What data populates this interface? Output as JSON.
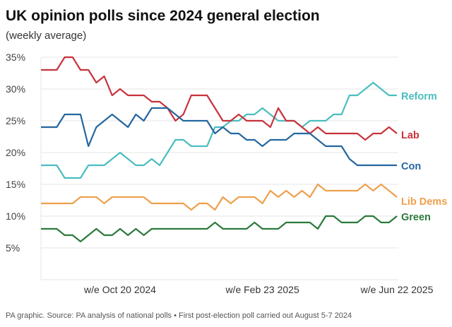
{
  "chart_data": {
    "type": "line",
    "title": "UK opinion polls since 2024 general election",
    "subtitle": "(weekly average)",
    "xlabel": "",
    "ylabel": "",
    "ylim": [
      0,
      35
    ],
    "yticks": [
      5,
      10,
      15,
      20,
      25,
      30,
      35
    ],
    "ytick_labels": [
      "5%",
      "10%",
      "15%",
      "20%",
      "25%",
      "30%",
      "35%"
    ],
    "grid": true,
    "legend": "direct labels at right end of lines",
    "x": [
      "2024-08-11",
      "2024-08-18",
      "2024-08-25",
      "2024-09-01",
      "2024-09-08",
      "2024-09-15",
      "2024-09-22",
      "2024-09-29",
      "2024-10-06",
      "2024-10-13",
      "2024-10-20",
      "2024-10-27",
      "2024-11-03",
      "2024-11-10",
      "2024-11-17",
      "2024-11-24",
      "2024-12-01",
      "2024-12-08",
      "2024-12-15",
      "2024-12-22",
      "2024-12-29",
      "2025-01-05",
      "2025-01-12",
      "2025-01-19",
      "2025-01-26",
      "2025-02-02",
      "2025-02-09",
      "2025-02-16",
      "2025-02-23",
      "2025-03-02",
      "2025-03-09",
      "2025-03-16",
      "2025-03-23",
      "2025-03-30",
      "2025-04-06",
      "2025-04-13",
      "2025-04-20",
      "2025-04-27",
      "2025-05-04",
      "2025-05-11",
      "2025-05-18",
      "2025-05-25",
      "2025-06-01",
      "2025-06-08",
      "2025-06-15",
      "2025-06-22"
    ],
    "xticks": [
      {
        "index": 10,
        "label": "w/e Oct 20 2024"
      },
      {
        "index": 28,
        "label": "w/e Feb 23 2025"
      },
      {
        "index": 45,
        "label": "w/e Jun 22 2025"
      }
    ],
    "series": [
      {
        "name": "Reform",
        "color": "#4bbdbf",
        "values": [
          18,
          18,
          18,
          16,
          16,
          16,
          18,
          18,
          18,
          19,
          20,
          19,
          18,
          18,
          19,
          18,
          20,
          22,
          22,
          21,
          21,
          21,
          24,
          24,
          25,
          25,
          26,
          26,
          27,
          26,
          25,
          25,
          25,
          24,
          25,
          25,
          25,
          26,
          26,
          29,
          29,
          30,
          31,
          30,
          29,
          29
        ]
      },
      {
        "name": "Lab",
        "color": "#c7333c",
        "values": [
          33,
          33,
          33,
          35,
          35,
          33,
          33,
          31,
          32,
          29,
          30,
          29,
          29,
          29,
          28,
          28,
          27,
          25,
          26,
          29,
          29,
          29,
          27,
          25,
          25,
          26,
          25,
          25,
          25,
          24,
          27,
          25,
          25,
          24,
          23,
          24,
          23,
          23,
          23,
          23,
          23,
          22,
          23,
          23,
          24,
          23
        ]
      },
      {
        "name": "Con",
        "color": "#24679f",
        "values": [
          24,
          24,
          24,
          26,
          26,
          26,
          21,
          24,
          25,
          26,
          25,
          24,
          26,
          25,
          27,
          27,
          27,
          26,
          25,
          25,
          25,
          25,
          23,
          24,
          23,
          23,
          22,
          22,
          21,
          22,
          22,
          22,
          23,
          23,
          23,
          22,
          21,
          21,
          21,
          19,
          18,
          18,
          18,
          18,
          18,
          18
        ]
      },
      {
        "name": "Lib Dems",
        "color": "#eea04c",
        "values": [
          12,
          12,
          12,
          12,
          12,
          13,
          13,
          13,
          12,
          13,
          13,
          13,
          13,
          13,
          12,
          12,
          12,
          12,
          12,
          11,
          12,
          12,
          11,
          13,
          12,
          13,
          13,
          13,
          12,
          14,
          13,
          14,
          13,
          14,
          13,
          15,
          14,
          14,
          14,
          14,
          14,
          15,
          14,
          15,
          14,
          13
        ]
      },
      {
        "name": "Green",
        "color": "#2b7a3b",
        "values": [
          8,
          8,
          8,
          7,
          7,
          6,
          7,
          8,
          7,
          7,
          8,
          7,
          8,
          7,
          8,
          8,
          8,
          8,
          8,
          8,
          8,
          8,
          9,
          8,
          8,
          8,
          8,
          9,
          8,
          8,
          8,
          9,
          9,
          9,
          9,
          8,
          10,
          10,
          9,
          9,
          9,
          10,
          10,
          9,
          9,
          10
        ]
      }
    ]
  },
  "footer": "PA graphic. Source: PA analysis of national polls • First post-election poll carried out August 5-7 2024"
}
